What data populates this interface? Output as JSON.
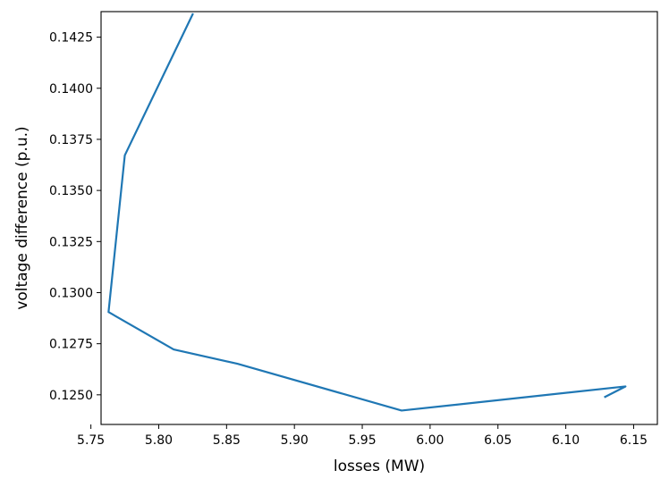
{
  "chart_data": {
    "type": "line",
    "title": "",
    "xlabel": "losses (MW)",
    "ylabel": "voltage difference (p.u.)",
    "xlim": [
      5.7575,
      6.1675
    ],
    "ylim": [
      0.12355,
      0.14375
    ],
    "xticks": [
      5.75,
      5.8,
      5.85,
      5.9,
      5.95,
      6.0,
      6.05,
      6.1,
      6.15
    ],
    "xtick_labels": [
      "5.75",
      "5.80",
      "5.85",
      "5.90",
      "5.95",
      "6.00",
      "6.05",
      "6.10",
      "6.15"
    ],
    "yticks": [
      0.125,
      0.1275,
      0.13,
      0.1325,
      0.135,
      0.1375,
      0.14,
      0.1425
    ],
    "ytick_labels": [
      "0.1250",
      "0.1275",
      "0.1300",
      "0.1325",
      "0.1350",
      "0.1375",
      "0.1400",
      "0.1425"
    ],
    "grid": false,
    "series": [
      {
        "color": "#1f77b4",
        "points": [
          [
            5.825,
            0.14362
          ],
          [
            5.775,
            0.13672
          ],
          [
            5.763,
            0.12905
          ],
          [
            5.811,
            0.12722
          ],
          [
            5.858,
            0.12652
          ],
          [
            5.979,
            0.12423
          ],
          [
            6.144,
            0.12541
          ],
          [
            6.129,
            0.1249
          ]
        ]
      }
    ]
  }
}
